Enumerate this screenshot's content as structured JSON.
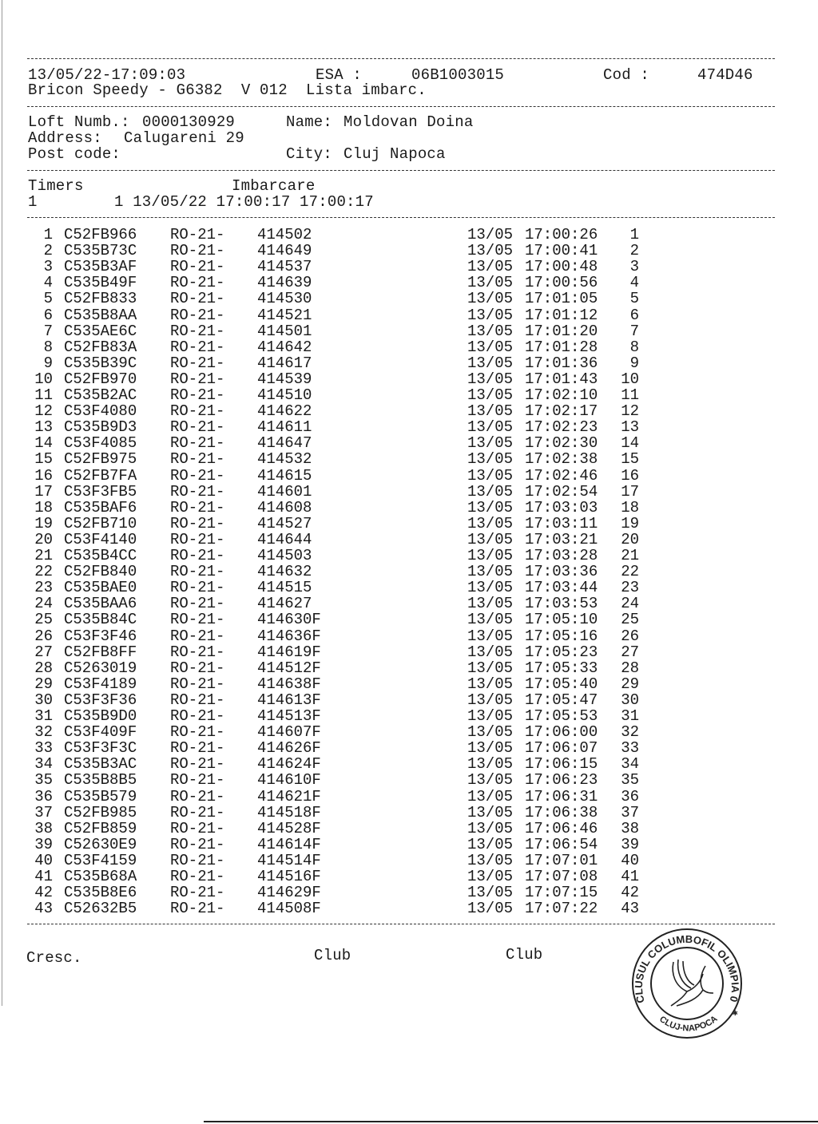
{
  "header": {
    "datetime": "13/05/22-17:09:03",
    "esa_label": "ESA :",
    "esa_value": "06B1003015",
    "cod_label": "Cod :",
    "cod_value": "474D46",
    "device_line": "Bricon Speedy - G6382  V 012  Lista imbarc."
  },
  "owner": {
    "loft_label": "Loft Numb.:",
    "loft_value": "0000130929",
    "name_label": "Name:",
    "name_value": "Moldovan Doina",
    "address_label": "Address:",
    "address_value": "Calugareni 29",
    "postcode_label": "Post code:",
    "city_label": "City:",
    "city_value": "Cluj Napoca"
  },
  "timers": {
    "timers_label": "Timers",
    "imbarcare_label": "Imbarcare",
    "timer_no": "1",
    "timer_line": "1 13/05/22 17:00:17 17:00:17"
  },
  "rows": [
    {
      "n": "1",
      "code": "C52FB966",
      "prefix": "RO-21-",
      "ring": "414502",
      "date": "13/05",
      "time": "17:00:26",
      "rank": "1"
    },
    {
      "n": "2",
      "code": "C535B73C",
      "prefix": "RO-21-",
      "ring": "414649",
      "date": "13/05",
      "time": "17:00:41",
      "rank": "2"
    },
    {
      "n": "3",
      "code": "C535B3AF",
      "prefix": "RO-21-",
      "ring": "414537",
      "date": "13/05",
      "time": "17:00:48",
      "rank": "3"
    },
    {
      "n": "4",
      "code": "C535B49F",
      "prefix": "RO-21-",
      "ring": "414639",
      "date": "13/05",
      "time": "17:00:56",
      "rank": "4"
    },
    {
      "n": "5",
      "code": "C52FB833",
      "prefix": "RO-21-",
      "ring": "414530",
      "date": "13/05",
      "time": "17:01:05",
      "rank": "5"
    },
    {
      "n": "6",
      "code": "C535B8AA",
      "prefix": "RO-21-",
      "ring": "414521",
      "date": "13/05",
      "time": "17:01:12",
      "rank": "6"
    },
    {
      "n": "7",
      "code": "C535AE6C",
      "prefix": "RO-21-",
      "ring": "414501",
      "date": "13/05",
      "time": "17:01:20",
      "rank": "7"
    },
    {
      "n": "8",
      "code": "C52FB83A",
      "prefix": "RO-21-",
      "ring": "414642",
      "date": "13/05",
      "time": "17:01:28",
      "rank": "8"
    },
    {
      "n": "9",
      "code": "C535B39C",
      "prefix": "RO-21-",
      "ring": "414617",
      "date": "13/05",
      "time": "17:01:36",
      "rank": "9"
    },
    {
      "n": "10",
      "code": "C52FB970",
      "prefix": "RO-21-",
      "ring": "414539",
      "date": "13/05",
      "time": "17:01:43",
      "rank": "10"
    },
    {
      "n": "11",
      "code": "C535B2AC",
      "prefix": "RO-21-",
      "ring": "414510",
      "date": "13/05",
      "time": "17:02:10",
      "rank": "11"
    },
    {
      "n": "12",
      "code": "C53F4080",
      "prefix": "RO-21-",
      "ring": "414622",
      "date": "13/05",
      "time": "17:02:17",
      "rank": "12"
    },
    {
      "n": "13",
      "code": "C535B9D3",
      "prefix": "RO-21-",
      "ring": "414611",
      "date": "13/05",
      "time": "17:02:23",
      "rank": "13"
    },
    {
      "n": "14",
      "code": "C53F4085",
      "prefix": "RO-21-",
      "ring": "414647",
      "date": "13/05",
      "time": "17:02:30",
      "rank": "14"
    },
    {
      "n": "15",
      "code": "C52FB975",
      "prefix": "RO-21-",
      "ring": "414532",
      "date": "13/05",
      "time": "17:02:38",
      "rank": "15"
    },
    {
      "n": "16",
      "code": "C52FB7FA",
      "prefix": "RO-21-",
      "ring": "414615",
      "date": "13/05",
      "time": "17:02:46",
      "rank": "16"
    },
    {
      "n": "17",
      "code": "C53F3FB5",
      "prefix": "RO-21-",
      "ring": "414601",
      "date": "13/05",
      "time": "17:02:54",
      "rank": "17"
    },
    {
      "n": "18",
      "code": "C535BAF6",
      "prefix": "RO-21-",
      "ring": "414608",
      "date": "13/05",
      "time": "17:03:03",
      "rank": "18"
    },
    {
      "n": "19",
      "code": "C52FB710",
      "prefix": "RO-21-",
      "ring": "414527",
      "date": "13/05",
      "time": "17:03:11",
      "rank": "19"
    },
    {
      "n": "20",
      "code": "C53F4140",
      "prefix": "RO-21-",
      "ring": "414644",
      "date": "13/05",
      "time": "17:03:21",
      "rank": "20"
    },
    {
      "n": "21",
      "code": "C535B4CC",
      "prefix": "RO-21-",
      "ring": "414503",
      "date": "13/05",
      "time": "17:03:28",
      "rank": "21"
    },
    {
      "n": "22",
      "code": "C52FB840",
      "prefix": "RO-21-",
      "ring": "414632",
      "date": "13/05",
      "time": "17:03:36",
      "rank": "22"
    },
    {
      "n": "23",
      "code": "C535BAE0",
      "prefix": "RO-21-",
      "ring": "414515",
      "date": "13/05",
      "time": "17:03:44",
      "rank": "23"
    },
    {
      "n": "24",
      "code": "C535BAA6",
      "prefix": "RO-21-",
      "ring": "414627",
      "date": "13/05",
      "time": "17:03:53",
      "rank": "24"
    },
    {
      "n": "25",
      "code": "C535B84C",
      "prefix": "RO-21-",
      "ring": "414630F",
      "date": "13/05",
      "time": "17:05:10",
      "rank": "25"
    },
    {
      "n": "26",
      "code": "C53F3F46",
      "prefix": "RO-21-",
      "ring": "414636F",
      "date": "13/05",
      "time": "17:05:16",
      "rank": "26"
    },
    {
      "n": "27",
      "code": "C52FB8FF",
      "prefix": "RO-21-",
      "ring": "414619F",
      "date": "13/05",
      "time": "17:05:23",
      "rank": "27"
    },
    {
      "n": "28",
      "code": "C5263019",
      "prefix": "RO-21-",
      "ring": "414512F",
      "date": "13/05",
      "time": "17:05:33",
      "rank": "28"
    },
    {
      "n": "29",
      "code": "C53F4189",
      "prefix": "RO-21-",
      "ring": "414638F",
      "date": "13/05",
      "time": "17:05:40",
      "rank": "29"
    },
    {
      "n": "30",
      "code": "C53F3F36",
      "prefix": "RO-21-",
      "ring": "414613F",
      "date": "13/05",
      "time": "17:05:47",
      "rank": "30"
    },
    {
      "n": "31",
      "code": "C535B9D0",
      "prefix": "RO-21-",
      "ring": "414513F",
      "date": "13/05",
      "time": "17:05:53",
      "rank": "31"
    },
    {
      "n": "32",
      "code": "C53F409F",
      "prefix": "RO-21-",
      "ring": "414607F",
      "date": "13/05",
      "time": "17:06:00",
      "rank": "32"
    },
    {
      "n": "33",
      "code": "C53F3F3C",
      "prefix": "RO-21-",
      "ring": "414626F",
      "date": "13/05",
      "time": "17:06:07",
      "rank": "33"
    },
    {
      "n": "34",
      "code": "C535B3AC",
      "prefix": "RO-21-",
      "ring": "414624F",
      "date": "13/05",
      "time": "17:06:15",
      "rank": "34"
    },
    {
      "n": "35",
      "code": "C535B8B5",
      "prefix": "RO-21-",
      "ring": "414610F",
      "date": "13/05",
      "time": "17:06:23",
      "rank": "35"
    },
    {
      "n": "36",
      "code": "C535B579",
      "prefix": "RO-21-",
      "ring": "414621F",
      "date": "13/05",
      "time": "17:06:31",
      "rank": "36"
    },
    {
      "n": "37",
      "code": "C52FB985",
      "prefix": "RO-21-",
      "ring": "414518F",
      "date": "13/05",
      "time": "17:06:38",
      "rank": "37"
    },
    {
      "n": "38",
      "code": "C52FB859",
      "prefix": "RO-21-",
      "ring": "414528F",
      "date": "13/05",
      "time": "17:06:46",
      "rank": "38"
    },
    {
      "n": "39",
      "code": "C52630E9",
      "prefix": "RO-21-",
      "ring": "414614F",
      "date": "13/05",
      "time": "17:06:54",
      "rank": "39"
    },
    {
      "n": "40",
      "code": "C53F4159",
      "prefix": "RO-21-",
      "ring": "414514F",
      "date": "13/05",
      "time": "17:07:01",
      "rank": "40"
    },
    {
      "n": "41",
      "code": "C535B68A",
      "prefix": "RO-21-",
      "ring": "414516F",
      "date": "13/05",
      "time": "17:07:08",
      "rank": "41"
    },
    {
      "n": "42",
      "code": "C535B8E6",
      "prefix": "RO-21-",
      "ring": "414629F",
      "date": "13/05",
      "time": "17:07:15",
      "rank": "42"
    },
    {
      "n": "43",
      "code": "C52632B5",
      "prefix": "RO-21-",
      "ring": "414508F",
      "date": "13/05",
      "time": "17:07:22",
      "rank": "43"
    }
  ],
  "footer": {
    "cresc_label": "Cresc.",
    "club_label_1": "Club",
    "club_label_2": "Club"
  },
  "stamp": {
    "top_text": "CLUSUL COLUMBOFIL OLIMPIA 04",
    "bottom_text": "CLUJ-NAPOCA",
    "icon": "dove-icon"
  }
}
